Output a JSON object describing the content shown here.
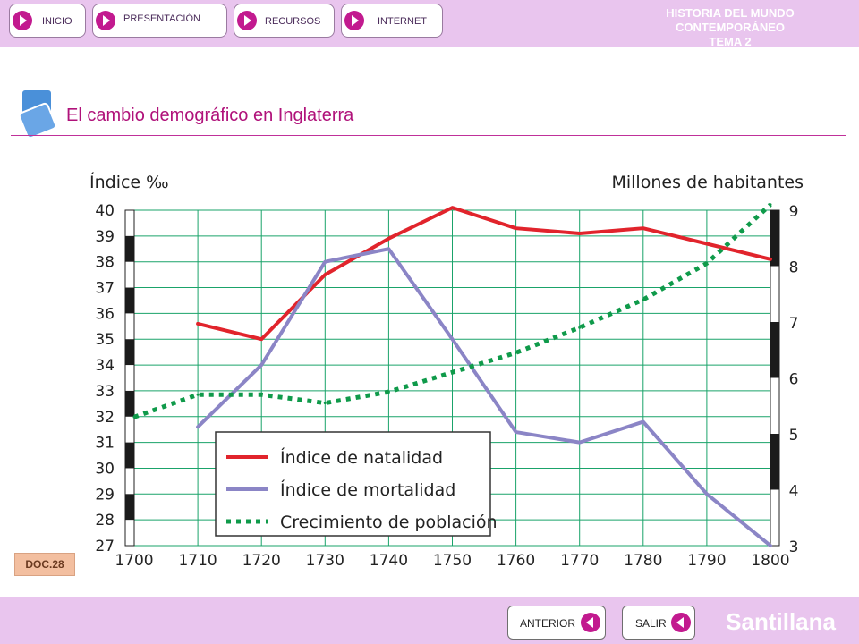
{
  "nav": {
    "inicio": "INICIO",
    "presentacion": "PRESENTACIÓN",
    "recursos": "RECURSOS",
    "internet": "INTERNET"
  },
  "header": {
    "line1": "HISTORIA DEL MUNDO CONTEMPORÁNEO",
    "line2": "TEMA 2"
  },
  "slide": {
    "title": "El cambio demográfico en Inglaterra",
    "doc_label": "DOC.28"
  },
  "footer": {
    "anterior": "ANTERIOR",
    "salir": "SALIR",
    "brand": "Santillana"
  },
  "colors": {
    "natalidad": "#e1242c",
    "mortalidad": "#8b85c6",
    "poblacion": "#0f9a4a",
    "grid": "#1aa36a",
    "accent": "#c21a8f"
  },
  "chart_data": {
    "type": "line",
    "title": "",
    "xlabel": "",
    "ylabel": "Índice ‰",
    "y2label": "Millones de habitantes",
    "x": [
      1700,
      1710,
      1720,
      1730,
      1740,
      1750,
      1760,
      1770,
      1780,
      1790,
      1800
    ],
    "xlim": [
      1700,
      1800
    ],
    "ylim": [
      27,
      40
    ],
    "y2lim": [
      3,
      9
    ],
    "y_ticks": [
      27,
      28,
      29,
      30,
      31,
      32,
      33,
      34,
      35,
      36,
      37,
      38,
      39,
      40
    ],
    "y2_ticks": [
      3,
      4,
      5,
      6,
      7,
      8,
      9
    ],
    "grid": true,
    "legend_position": "center-left",
    "series": [
      {
        "name": "Índice de natalidad",
        "axis": "left",
        "style": "solid",
        "color": "#e1242c",
        "x": [
          1710,
          1720,
          1730,
          1740,
          1750,
          1760,
          1770,
          1780,
          1790,
          1800
        ],
        "values": [
          35.6,
          35.0,
          37.5,
          38.9,
          40.1,
          39.3,
          39.1,
          39.3,
          38.7,
          38.1
        ]
      },
      {
        "name": "Índice de mortalidad",
        "axis": "left",
        "style": "solid",
        "color": "#8b85c6",
        "x": [
          1710,
          1720,
          1730,
          1740,
          1750,
          1760,
          1770,
          1780,
          1790,
          1800
        ],
        "values": [
          31.6,
          34.0,
          38.0,
          38.5,
          35.0,
          31.4,
          31.0,
          31.8,
          29.0,
          27.0
        ]
      },
      {
        "name": "Crecimiento de población",
        "axis": "right",
        "style": "dotted",
        "color": "#0f9a4a",
        "x": [
          1700,
          1710,
          1720,
          1730,
          1740,
          1750,
          1760,
          1770,
          1780,
          1790,
          1800
        ],
        "values": [
          5.3,
          5.7,
          5.7,
          5.55,
          5.75,
          6.1,
          6.45,
          6.9,
          7.4,
          8.05,
          9.1
        ]
      }
    ]
  }
}
